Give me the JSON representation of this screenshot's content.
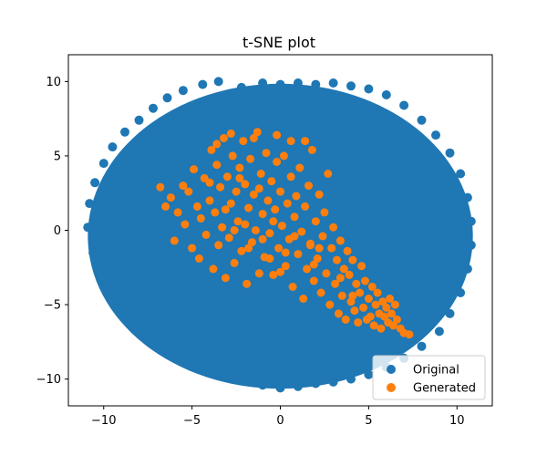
{
  "chart_data": {
    "type": "scatter",
    "title": "t-SNE plot",
    "xlabel": "",
    "ylabel": "",
    "xlim": [
      -12,
      12
    ],
    "ylim": [
      -11.8,
      11.8
    ],
    "xticks": [
      -10,
      -5,
      0,
      5,
      10
    ],
    "yticks": [
      -10,
      -5,
      0,
      5,
      10
    ],
    "xtick_labels": [
      "−10",
      "−5",
      "0",
      "5",
      "10"
    ],
    "ytick_labels": [
      "−10",
      "−5",
      "0",
      "5",
      "10"
    ],
    "grid": false,
    "legend_position": "bottom-right",
    "series": [
      {
        "name": "Original",
        "color": "#1f77b4",
        "marker_radius": 5,
        "points": [
          [
            -10.8,
            1.8
          ],
          [
            -10.9,
            0.2
          ],
          [
            -10.6,
            -1.5
          ],
          [
            -10.5,
            3.2
          ],
          [
            -10.2,
            -2.8
          ],
          [
            -10.0,
            4.5
          ],
          [
            -9.8,
            -3.8
          ],
          [
            -9.5,
            5.6
          ],
          [
            -9.2,
            -4.8
          ],
          [
            -8.8,
            6.6
          ],
          [
            -8.4,
            -5.8
          ],
          [
            -8.0,
            7.4
          ],
          [
            -7.8,
            -6.6
          ],
          [
            -7.2,
            8.2
          ],
          [
            -7.0,
            -7.4
          ],
          [
            -6.4,
            8.9
          ],
          [
            -6.0,
            -8.2
          ],
          [
            -5.5,
            9.4
          ],
          [
            -5.0,
            -8.9
          ],
          [
            -4.4,
            9.8
          ],
          [
            -4.0,
            -9.4
          ],
          [
            -3.5,
            10.0
          ],
          [
            -3.0,
            -9.8
          ],
          [
            -2.2,
            9.6
          ],
          [
            -2.0,
            -10.1
          ],
          [
            -1.0,
            9.9
          ],
          [
            -1.0,
            -10.4
          ],
          [
            0.0,
            9.8
          ],
          [
            0.0,
            -10.6
          ],
          [
            1.0,
            9.9
          ],
          [
            1.0,
            -10.5
          ],
          [
            2.0,
            9.8
          ],
          [
            2.0,
            -10.3
          ],
          [
            3.0,
            9.9
          ],
          [
            3.0,
            -10.2
          ],
          [
            4.0,
            9.7
          ],
          [
            4.0,
            -10.0
          ],
          [
            5.0,
            9.5
          ],
          [
            5.0,
            -9.7
          ],
          [
            6.0,
            9.1
          ],
          [
            6.0,
            -9.2
          ],
          [
            7.0,
            8.4
          ],
          [
            7.0,
            -8.6
          ],
          [
            8.0,
            7.4
          ],
          [
            8.0,
            -7.8
          ],
          [
            8.8,
            6.4
          ],
          [
            9.0,
            -6.8
          ],
          [
            9.6,
            5.2
          ],
          [
            9.6,
            -5.6
          ],
          [
            10.2,
            3.8
          ],
          [
            10.2,
            -4.2
          ],
          [
            10.6,
            2.2
          ],
          [
            10.6,
            -2.6
          ],
          [
            10.8,
            0.6
          ],
          [
            10.8,
            -1.0
          ],
          [
            -8.5,
            0.0
          ],
          [
            -8.0,
            3.0
          ],
          [
            -8.0,
            -3.0
          ],
          [
            -7.0,
            5.0
          ],
          [
            -7.0,
            -5.0
          ],
          [
            -6.0,
            2.0
          ],
          [
            -6.0,
            -2.0
          ],
          [
            -5.5,
            6.5
          ],
          [
            -5.5,
            -6.5
          ],
          [
            -4.5,
            0.0
          ],
          [
            -4.0,
            4.0
          ],
          [
            -4.0,
            -4.0
          ],
          [
            -3.5,
            7.5
          ],
          [
            -3.5,
            -7.5
          ],
          [
            -2.5,
            2.0
          ],
          [
            -2.5,
            -2.0
          ],
          [
            -2.0,
            5.5
          ],
          [
            -2.0,
            -5.5
          ],
          [
            -1.5,
            8.0
          ],
          [
            -1.5,
            -8.5
          ],
          [
            0.0,
            0.0
          ],
          [
            0.0,
            4.0
          ],
          [
            0.0,
            -4.0
          ],
          [
            0.0,
            7.0
          ],
          [
            0.0,
            -7.5
          ],
          [
            1.5,
            2.0
          ],
          [
            1.5,
            -2.0
          ],
          [
            1.5,
            8.0
          ],
          [
            1.5,
            -8.5
          ],
          [
            2.5,
            5.5
          ],
          [
            2.5,
            -5.5
          ],
          [
            3.0,
            0.0
          ],
          [
            3.5,
            7.5
          ],
          [
            3.5,
            -7.5
          ],
          [
            4.0,
            3.0
          ],
          [
            4.0,
            -3.0
          ],
          [
            5.0,
            6.0
          ],
          [
            5.0,
            -6.0
          ],
          [
            5.5,
            0.0
          ],
          [
            6.0,
            3.0
          ],
          [
            6.0,
            -3.0
          ],
          [
            6.5,
            6.5
          ],
          [
            6.5,
            -6.5
          ],
          [
            7.5,
            1.0
          ],
          [
            7.5,
            -1.5
          ],
          [
            7.5,
            4.5
          ],
          [
            7.5,
            -4.5
          ],
          [
            8.5,
            0.0
          ],
          [
            8.5,
            3.0
          ],
          [
            8.5,
            -3.0
          ],
          [
            9.0,
            1.5
          ],
          [
            9.0,
            -1.5
          ]
        ]
      },
      {
        "name": "Generated",
        "color": "#ff7f0e",
        "marker_radius": 4.5,
        "points": [
          [
            -6.8,
            2.9
          ],
          [
            -6.5,
            1.6
          ],
          [
            -6.2,
            2.2
          ],
          [
            -6.0,
            -0.7
          ],
          [
            -5.8,
            1.2
          ],
          [
            -5.5,
            3.0
          ],
          [
            -5.4,
            0.4
          ],
          [
            -5.2,
            2.6
          ],
          [
            -5.0,
            -1.2
          ],
          [
            -4.9,
            4.1
          ],
          [
            -4.7,
            1.6
          ],
          [
            -4.6,
            -1.9
          ],
          [
            -4.5,
            0.8
          ],
          [
            -4.3,
            3.5
          ],
          [
            -4.2,
            -0.3
          ],
          [
            -4.0,
            2.0
          ],
          [
            -3.9,
            5.4
          ],
          [
            -3.8,
            -2.6
          ],
          [
            -3.7,
            1.2
          ],
          [
            -3.6,
            4.4
          ],
          [
            -3.5,
            -1.0
          ],
          [
            -3.4,
            2.9
          ],
          [
            -3.3,
            0.2
          ],
          [
            -3.2,
            6.2
          ],
          [
            -3.1,
            -3.2
          ],
          [
            -3.0,
            3.6
          ],
          [
            -2.9,
            -0.5
          ],
          [
            -2.8,
            1.8
          ],
          [
            -2.7,
            5.0
          ],
          [
            -2.6,
            -2.2
          ],
          [
            -2.5,
            2.6
          ],
          [
            -2.4,
            0.6
          ],
          [
            -2.3,
            4.2
          ],
          [
            -2.2,
            -1.4
          ],
          [
            -2.1,
            6.0
          ],
          [
            -2.0,
            3.1
          ],
          [
            -1.9,
            -3.6
          ],
          [
            -1.8,
            1.5
          ],
          [
            -1.7,
            4.8
          ],
          [
            -1.6,
            -0.8
          ],
          [
            -1.5,
            2.4
          ],
          [
            -1.4,
            0.0
          ],
          [
            -1.3,
            6.6
          ],
          [
            -1.2,
            -2.9
          ],
          [
            -1.1,
            3.8
          ],
          [
            -1.0,
            1.1
          ],
          [
            -0.9,
            -1.8
          ],
          [
            -0.8,
            5.2
          ],
          [
            -0.7,
            2.0
          ],
          [
            -0.6,
            -0.2
          ],
          [
            -0.5,
            3.3
          ],
          [
            -0.4,
            -3.0
          ],
          [
            -0.3,
            1.4
          ],
          [
            -0.2,
            4.6
          ],
          [
            -0.1,
            -1.2
          ],
          [
            0.0,
            2.6
          ],
          [
            0.1,
            0.3
          ],
          [
            0.2,
            5.0
          ],
          [
            0.3,
            -2.4
          ],
          [
            0.4,
            1.8
          ],
          [
            0.5,
            -0.6
          ],
          [
            0.6,
            3.6
          ],
          [
            0.7,
            -3.8
          ],
          [
            0.8,
            0.9
          ],
          [
            0.9,
            2.3
          ],
          [
            1.0,
            -1.6
          ],
          [
            1.1,
            4.2
          ],
          [
            1.2,
            -0.1
          ],
          [
            1.3,
            -4.6
          ],
          [
            1.4,
            1.6
          ],
          [
            1.5,
            -2.6
          ],
          [
            1.6,
            3.0
          ],
          [
            1.7,
            -0.9
          ],
          [
            1.8,
            5.4
          ],
          [
            1.9,
            -3.4
          ],
          [
            2.0,
            0.6
          ],
          [
            2.1,
            -1.9
          ],
          [
            2.2,
            2.4
          ],
          [
            2.3,
            -4.2
          ],
          [
            2.4,
            -0.4
          ],
          [
            2.5,
            1.2
          ],
          [
            2.6,
            -2.9
          ],
          [
            2.7,
            3.8
          ],
          [
            2.8,
            -5.0
          ],
          [
            2.9,
            -1.2
          ],
          [
            3.0,
            0.2
          ],
          [
            3.1,
            -3.6
          ],
          [
            3.2,
            -2.0
          ],
          [
            3.3,
            -5.6
          ],
          [
            3.4,
            -0.7
          ],
          [
            3.5,
            -4.4
          ],
          [
            3.6,
            -2.6
          ],
          [
            3.7,
            -6.0
          ],
          [
            3.8,
            -1.4
          ],
          [
            3.9,
            -3.0
          ],
          [
            4.0,
            -4.8
          ],
          [
            4.1,
            -2.0
          ],
          [
            4.2,
            -5.4
          ],
          [
            4.3,
            -3.6
          ],
          [
            4.4,
            -6.2
          ],
          [
            4.5,
            -4.2
          ],
          [
            4.6,
            -2.4
          ],
          [
            4.7,
            -5.2
          ],
          [
            4.8,
            -3.4
          ],
          [
            4.9,
            -6.0
          ],
          [
            5.0,
            -4.6
          ],
          [
            5.1,
            -5.8
          ],
          [
            5.2,
            -3.8
          ],
          [
            5.3,
            -6.4
          ],
          [
            5.4,
            -5.0
          ],
          [
            5.5,
            -4.2
          ],
          [
            5.6,
            -5.6
          ],
          [
            5.7,
            -6.6
          ],
          [
            5.8,
            -4.8
          ],
          [
            5.9,
            -5.8
          ],
          [
            6.0,
            -5.2
          ],
          [
            6.1,
            -6.2
          ],
          [
            6.2,
            -4.6
          ],
          [
            6.3,
            -5.6
          ],
          [
            6.4,
            -6.4
          ],
          [
            6.5,
            -5.0
          ],
          [
            6.6,
            -6.0
          ],
          [
            6.8,
            -6.6
          ],
          [
            7.0,
            -6.9
          ],
          [
            7.3,
            -7.0
          ],
          [
            -1.5,
            6.2
          ],
          [
            -0.2,
            6.4
          ],
          [
            0.6,
            6.0
          ],
          [
            1.4,
            6.0
          ],
          [
            -2.8,
            6.5
          ],
          [
            -3.6,
            5.8
          ],
          [
            -2.3,
            3.5
          ],
          [
            -1.2,
            2.8
          ],
          [
            0.3,
            -1.5
          ],
          [
            -0.6,
            -1.9
          ],
          [
            1.9,
            -2.3
          ],
          [
            -2.0,
            0.4
          ],
          [
            -1.0,
            -0.6
          ],
          [
            0.8,
            -0.4
          ],
          [
            -3.1,
            1.4
          ],
          [
            -4.0,
            3.2
          ],
          [
            2.2,
            -1.2
          ],
          [
            3.4,
            -3.2
          ],
          [
            4.1,
            -4.4
          ],
          [
            1.7,
            -1.0
          ],
          [
            -0.4,
            0.6
          ],
          [
            -1.8,
            -1.2
          ],
          [
            -2.6,
            0.0
          ],
          [
            0.0,
            -2.8
          ]
        ]
      }
    ]
  }
}
